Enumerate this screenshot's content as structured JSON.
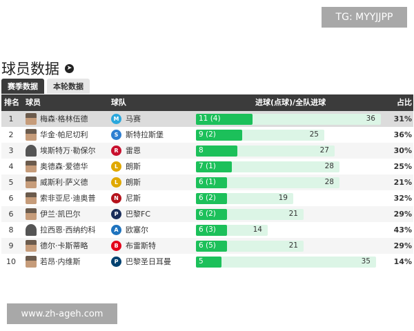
{
  "watermarks": {
    "tg": "TG: MYYJJPP",
    "web": "www.zh-ageh.com"
  },
  "page": {
    "title": "球员数据"
  },
  "tabs": [
    {
      "label": "赛季数据",
      "active": true
    },
    {
      "label": "本轮数据",
      "active": false
    }
  ],
  "table": {
    "headers": {
      "rank": "排名",
      "player": "球员",
      "team": "球队",
      "goals": "进球(点球)/全队进球",
      "share": "占比"
    },
    "rows": [
      {
        "rank": "1",
        "player": "梅森·格林伍德",
        "team": "马赛",
        "goals_text": "11 (4)",
        "goals": 11,
        "team_goals": 36,
        "team_goals_text": "36",
        "share": "31%",
        "logo_color": "#2aa7dc",
        "logo_glyph": "M"
      },
      {
        "rank": "2",
        "player": "华金·帕尼切利",
        "team": "斯特拉斯堡",
        "goals_text": "9 (2)",
        "goals": 9,
        "team_goals": 25,
        "team_goals_text": "25",
        "share": "36%",
        "logo_color": "#2f7fd1",
        "logo_glyph": "S"
      },
      {
        "rank": "3",
        "player": "埃斯特万·勒保尔",
        "team": "雷恩",
        "goals_text": "8",
        "goals": 8,
        "team_goals": 27,
        "team_goals_text": "27",
        "share": "30%",
        "logo_color": "#c8102e",
        "logo_glyph": "R"
      },
      {
        "rank": "4",
        "player": "奥德森·爱德华",
        "team": "朗斯",
        "goals_text": "7 (1)",
        "goals": 7,
        "team_goals": 28,
        "team_goals_text": "28",
        "share": "25%",
        "logo_color": "#e0a800",
        "logo_glyph": "L"
      },
      {
        "rank": "5",
        "player": "威斯利·萨义德",
        "team": "朗斯",
        "goals_text": "6 (1)",
        "goals": 6,
        "team_goals": 28,
        "team_goals_text": "28",
        "share": "21%",
        "logo_color": "#e0a800",
        "logo_glyph": "L"
      },
      {
        "rank": "6",
        "player": "索非亚尼·迪奥普",
        "team": "尼斯",
        "goals_text": "6 (2)",
        "goals": 6,
        "team_goals": 19,
        "team_goals_text": "19",
        "share": "32%",
        "logo_color": "#b5121b",
        "logo_glyph": "N"
      },
      {
        "rank": "6",
        "player": "伊兰·凯巴尔",
        "team": "巴黎FC",
        "goals_text": "6 (2)",
        "goals": 6,
        "team_goals": 21,
        "team_goals_text": "21",
        "share": "29%",
        "logo_color": "#1a2d5a",
        "logo_glyph": "P"
      },
      {
        "rank": "8",
        "player": "拉西恩·西纳约科",
        "team": "欧塞尔",
        "goals_text": "6 (3)",
        "goals": 6,
        "team_goals": 14,
        "team_goals_text": "14",
        "share": "43%",
        "logo_color": "#1e73be",
        "logo_glyph": "A"
      },
      {
        "rank": "9",
        "player": "德尔·卡斯蒂略",
        "team": "布雷斯特",
        "goals_text": "6 (5)",
        "goals": 6,
        "team_goals": 21,
        "team_goals_text": "21",
        "share": "29%",
        "logo_color": "#e3001b",
        "logo_glyph": "B"
      },
      {
        "rank": "10",
        "player": "若昂·内维斯",
        "team": "巴黎圣日耳曼",
        "goals_text": "5",
        "goals": 5,
        "team_goals": 35,
        "team_goals_text": "35",
        "share": "14%",
        "logo_color": "#004170",
        "logo_glyph": "P"
      }
    ]
  },
  "colors": {
    "header_bg": "#3b3b3b",
    "goal_bar": "#1cc05a",
    "team_bar": "#dcf5e6"
  }
}
